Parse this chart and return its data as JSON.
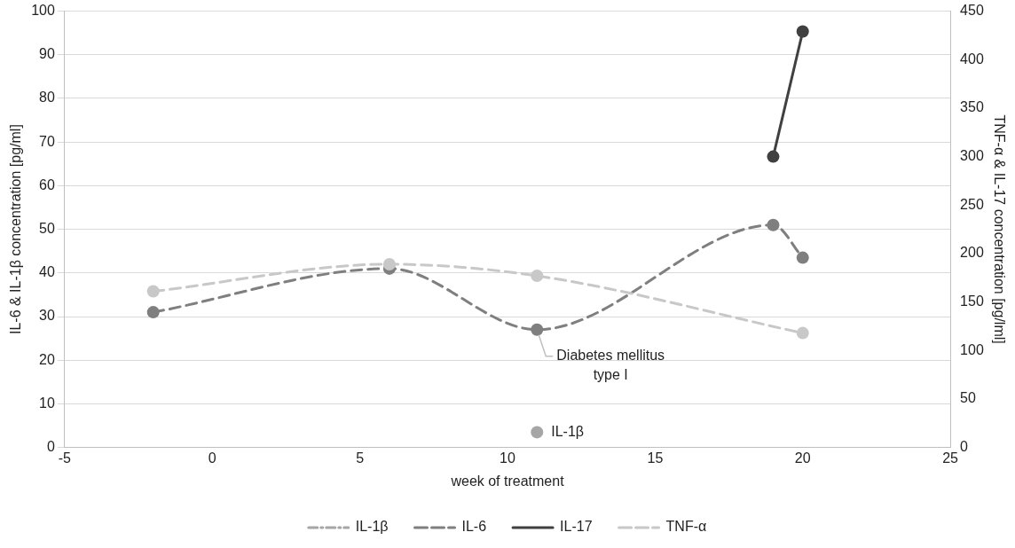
{
  "chart_data": {
    "type": "line",
    "xlabel": "week of treatment",
    "ylabel": "IL-6 & IL-1β concentration [pg/ml]",
    "y2label": "TNF-α & IL-17 concentration [pg/lml]",
    "xlim": [
      -5,
      25
    ],
    "xticks": [
      -5,
      0,
      5,
      10,
      15,
      20,
      25
    ],
    "ylim": [
      0,
      100
    ],
    "yticks": [
      0,
      10,
      20,
      30,
      40,
      50,
      60,
      70,
      80,
      90,
      100
    ],
    "y2lim": [
      0,
      450
    ],
    "y2ticks": [
      0,
      50,
      100,
      150,
      200,
      250,
      300,
      350,
      400,
      450
    ],
    "grid": "y",
    "legend": "bottom",
    "marker": "circle",
    "series": [
      {
        "name": "IL-1β",
        "color": "#a6a6a6",
        "line_style": "dashdot",
        "x": [
          11
        ],
        "values": [
          3.5
        ]
      },
      {
        "name": "IL-6",
        "color": "#7f7f7f",
        "line_style": "dashed",
        "x": [
          -2,
          6,
          11,
          19,
          20
        ],
        "values": [
          31,
          41,
          27,
          51,
          43.5
        ]
      },
      {
        "name": "IL-17",
        "color": "#404040",
        "line_style": "solid",
        "axis": "y2",
        "x": [
          19,
          20
        ],
        "values": [
          300,
          429
        ]
      },
      {
        "name": "TNF-α",
        "color": "#c8c8c8",
        "line_style": "dashed",
        "axis": "y2",
        "x": [
          -2,
          6,
          11,
          20
        ],
        "values": [
          161,
          189,
          177,
          118
        ]
      }
    ],
    "annotations": [
      {
        "text": "IL-1β",
        "x": 11,
        "y": 3.5
      },
      {
        "text": "Diabetes mellitus\ntype I",
        "x": 11,
        "y": 27
      }
    ]
  }
}
